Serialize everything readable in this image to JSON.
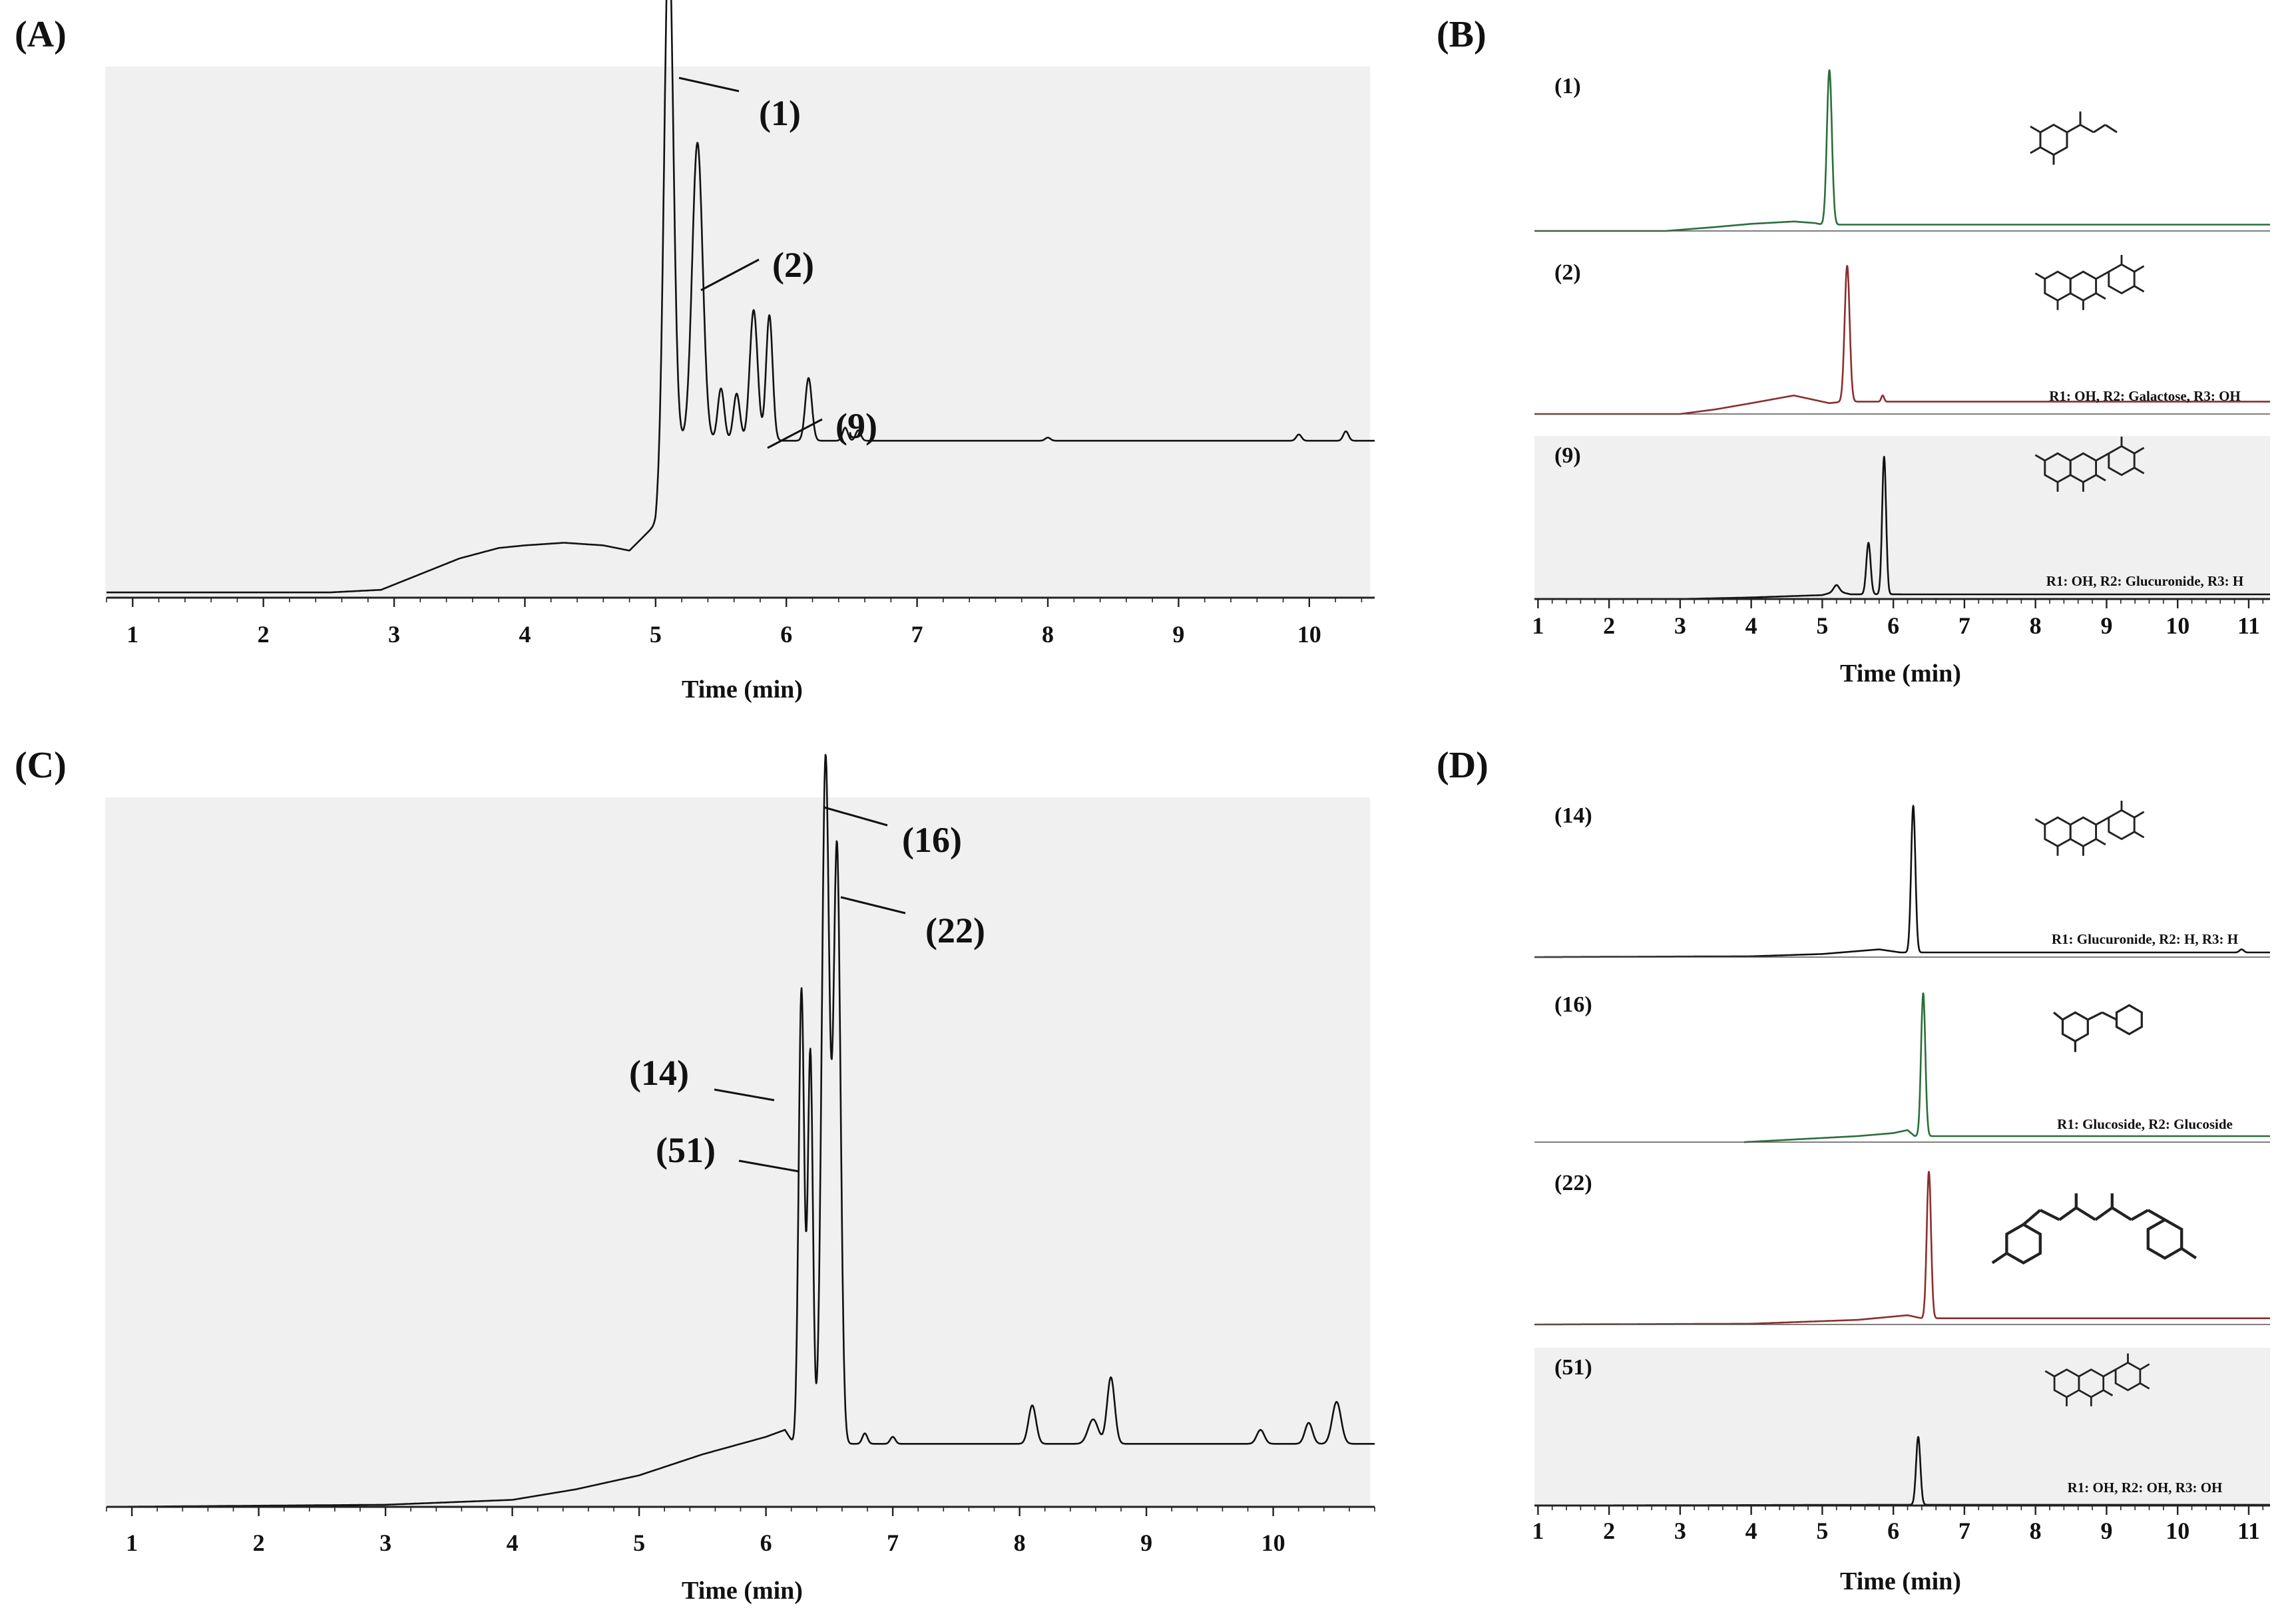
{
  "panel_labels": {
    "A": "(A)",
    "B": "(B)",
    "C": "(C)",
    "D": "(D)"
  },
  "colors": {
    "trace": "#111111",
    "trace_green": "#2a6e3a",
    "trace_red": "#8a2e2e",
    "plot_bg": "#f0f0f0",
    "axis": "#222222"
  },
  "chart_data": [
    {
      "id": "A",
      "type": "line",
      "title": "",
      "xlabel": "Time (min)",
      "ylabel": "",
      "xlim": [
        0.8,
        10.5
      ],
      "ylim": [
        0,
        100
      ],
      "x_ticks": [
        1,
        2,
        3,
        4,
        5,
        6,
        7,
        8,
        9,
        10
      ],
      "baseline": [
        [
          0.8,
          1
        ],
        [
          2.5,
          1
        ],
        [
          2.9,
          1.5
        ],
        [
          3.2,
          4.5
        ],
        [
          3.5,
          7.5
        ],
        [
          3.8,
          9.5
        ],
        [
          4.0,
          10
        ],
        [
          4.3,
          10.5
        ],
        [
          4.6,
          10
        ],
        [
          4.8,
          9
        ],
        [
          5.0,
          14
        ],
        [
          5.1,
          30
        ]
      ],
      "peaks": [
        {
          "rt": 5.1,
          "height": 98,
          "width": 0.035
        },
        {
          "rt": 5.32,
          "height": 57,
          "width": 0.04
        },
        {
          "rt": 5.5,
          "height": 10,
          "width": 0.025
        },
        {
          "rt": 5.62,
          "height": 9,
          "width": 0.025
        },
        {
          "rt": 5.75,
          "height": 25,
          "width": 0.03
        },
        {
          "rt": 5.87,
          "height": 24,
          "width": 0.025
        },
        {
          "rt": 6.17,
          "height": 12,
          "width": 0.025
        },
        {
          "rt": 6.45,
          "height": 2.5,
          "width": 0.02
        },
        {
          "rt": 6.55,
          "height": 2,
          "width": 0.02
        },
        {
          "rt": 8.0,
          "height": 0.6,
          "width": 0.02
        },
        {
          "rt": 9.92,
          "height": 1.2,
          "width": 0.02
        },
        {
          "rt": 10.28,
          "height": 1.8,
          "width": 0.02
        }
      ],
      "annotations": [
        {
          "label": "(1)",
          "rt": 5.1
        },
        {
          "label": "(2)",
          "rt": 5.32
        },
        {
          "label": "(9)",
          "rt": 5.87
        }
      ]
    },
    {
      "id": "B",
      "type": "line",
      "title": "",
      "xlabel": "Time (min)",
      "ylabel": "",
      "xlim": [
        0.95,
        11.3
      ],
      "ylim": [
        0,
        100
      ],
      "x_ticks": [
        1,
        2,
        3,
        4,
        5,
        6,
        7,
        8,
        9,
        10,
        11
      ],
      "subplots": [
        {
          "label": "(1)",
          "trace_color": "green",
          "baseline": [
            [
              0.95,
              0
            ],
            [
              2.8,
              0
            ],
            [
              3.5,
              2.5
            ],
            [
              4.0,
              4.5
            ],
            [
              4.6,
              6
            ],
            [
              4.9,
              5
            ],
            [
              5.0,
              4
            ]
          ],
          "peaks": [
            {
              "rt": 5.1,
              "height": 98,
              "width": 0.035
            }
          ],
          "structure_caption": ""
        },
        {
          "label": "(2)",
          "trace_color": "red",
          "baseline": [
            [
              0.95,
              0
            ],
            [
              3.0,
              0
            ],
            [
              3.5,
              3
            ],
            [
              4.0,
              7
            ],
            [
              4.6,
              12
            ],
            [
              4.9,
              9
            ],
            [
              5.1,
              7
            ],
            [
              5.3,
              8
            ]
          ],
          "peaks": [
            {
              "rt": 5.35,
              "height": 88,
              "width": 0.035
            },
            {
              "rt": 5.85,
              "height": 4,
              "width": 0.02
            }
          ],
          "structure_caption": "R1: OH, R2: Galactose, R3: OH"
        },
        {
          "label": "(9)",
          "trace_color": "black",
          "baseline": [
            [
              0.95,
              0
            ],
            [
              3.0,
              0
            ],
            [
              4.0,
              1
            ],
            [
              5.0,
              2.5
            ],
            [
              5.2,
              5
            ],
            [
              5.4,
              3
            ]
          ],
          "peaks": [
            {
              "rt": 5.2,
              "height": 4,
              "width": 0.04
            },
            {
              "rt": 5.65,
              "height": 33,
              "width": 0.03
            },
            {
              "rt": 5.87,
              "height": 88,
              "width": 0.028
            }
          ],
          "structure_caption": "R1: OH, R2: Glucuronide, R3: H"
        }
      ]
    },
    {
      "id": "C",
      "type": "line",
      "title": "",
      "xlabel": "Time (min)",
      "ylabel": "",
      "xlim": [
        0.8,
        10.8
      ],
      "ylim": [
        0,
        100
      ],
      "x_ticks": [
        1,
        2,
        3,
        4,
        5,
        6,
        7,
        8,
        9,
        10
      ],
      "baseline": [
        [
          0.8,
          0
        ],
        [
          3.0,
          0.3
        ],
        [
          4.0,
          1
        ],
        [
          4.5,
          2.5
        ],
        [
          5.0,
          4.5
        ],
        [
          5.5,
          7.5
        ],
        [
          5.8,
          9
        ],
        [
          6.0,
          10
        ],
        [
          6.15,
          11
        ],
        [
          6.22,
          9
        ]
      ],
      "peaks": [
        {
          "rt": 6.28,
          "height": 65,
          "width": 0.022
        },
        {
          "rt": 6.35,
          "height": 56,
          "width": 0.02
        },
        {
          "rt": 6.47,
          "height": 98,
          "width": 0.03
        },
        {
          "rt": 6.56,
          "height": 85,
          "width": 0.028
        },
        {
          "rt": 6.78,
          "height": 1.5,
          "width": 0.02
        },
        {
          "rt": 7.0,
          "height": 1,
          "width": 0.02
        },
        {
          "rt": 8.1,
          "height": 5.5,
          "width": 0.03
        },
        {
          "rt": 8.58,
          "height": 3.5,
          "width": 0.04
        },
        {
          "rt": 8.72,
          "height": 9.5,
          "width": 0.03
        },
        {
          "rt": 9.9,
          "height": 2,
          "width": 0.03
        },
        {
          "rt": 10.28,
          "height": 3,
          "width": 0.03
        },
        {
          "rt": 10.5,
          "height": 6,
          "width": 0.035
        }
      ],
      "annotations": [
        {
          "label": "(16)",
          "rt": 6.47
        },
        {
          "label": "(22)",
          "rt": 6.56
        },
        {
          "label": "(14)",
          "rt": 6.28
        },
        {
          "label": "(51)",
          "rt": 6.35
        }
      ]
    },
    {
      "id": "D",
      "type": "line",
      "title": "",
      "xlabel": "Time (min)",
      "ylabel": "",
      "xlim": [
        0.95,
        11.3
      ],
      "ylim": [
        0,
        100
      ],
      "x_ticks": [
        1,
        2,
        3,
        4,
        5,
        6,
        7,
        8,
        9,
        10,
        11
      ],
      "subplots": [
        {
          "label": "(14)",
          "trace_color": "black",
          "baseline": [
            [
              0.95,
              0
            ],
            [
              4.0,
              0.5
            ],
            [
              5.0,
              2
            ],
            [
              5.8,
              5
            ],
            [
              6.1,
              3
            ]
          ],
          "peaks": [
            {
              "rt": 6.28,
              "height": 95,
              "width": 0.03
            },
            {
              "rt": 10.9,
              "height": 2,
              "width": 0.03
            }
          ],
          "structure_caption": "R1: Glucuronide, R2: H, R3: H"
        },
        {
          "label": "(16)",
          "trace_color": "green",
          "start": 3.9,
          "baseline": [
            [
              3.9,
              0
            ],
            [
              4.5,
              1.5
            ],
            [
              5.5,
              4
            ],
            [
              6.0,
              6
            ],
            [
              6.2,
              8
            ],
            [
              6.3,
              4
            ]
          ],
          "peaks": [
            {
              "rt": 6.42,
              "height": 95,
              "width": 0.03
            }
          ],
          "structure_caption": "R1: Glucoside, R2: Glucoside"
        },
        {
          "label": "(22)",
          "trace_color": "red",
          "baseline": [
            [
              0.95,
              0
            ],
            [
              4.0,
              0.5
            ],
            [
              5.5,
              3
            ],
            [
              6.2,
              6
            ],
            [
              6.4,
              4
            ]
          ],
          "peaks": [
            {
              "rt": 6.5,
              "height": 95,
              "width": 0.03
            }
          ],
          "structure_caption": ""
        },
        {
          "label": "(51)",
          "trace_color": "black",
          "baseline": [
            [
              0.95,
              0
            ],
            [
              6.0,
              0.5
            ]
          ],
          "peaks": [
            {
              "rt": 6.35,
              "height": 45,
              "width": 0.03
            }
          ],
          "structure_caption": "R1: OH, R2: OH, R3: OH"
        }
      ]
    }
  ]
}
